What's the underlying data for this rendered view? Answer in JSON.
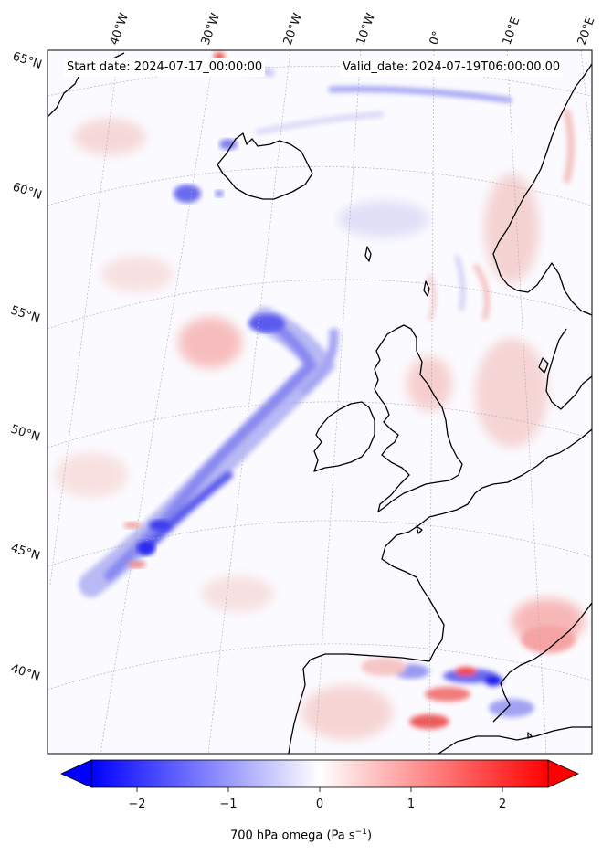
{
  "header": {
    "start_date": "Start date: 2024-07-17_00:00:00",
    "valid_date": "Valid_date: 2024-07-19T06:00:00.00"
  },
  "longitude_labels": [
    "40°W",
    "30°W",
    "20°W",
    "10°W",
    "0°",
    "10°E",
    "20°E"
  ],
  "latitude_labels": [
    "65°N",
    "60°N",
    "55°N",
    "50°N",
    "45°N",
    "40°N"
  ],
  "colorbar": {
    "title": "700 hPa omega (Pa s",
    "unit_exponent": "−1",
    "title_end": ")",
    "range": [
      -2.5,
      2.5
    ],
    "tick_labels": [
      "−2",
      "−1",
      "0",
      "1",
      "2"
    ],
    "colormap": "bwr",
    "colors": {
      "negative": "#0000ff",
      "zero": "#ffffff",
      "positive": "#ff0000"
    }
  },
  "colors": {
    "coastline": "#000000",
    "gridline": "#aaaaaa",
    "frame": "#000000"
  }
}
